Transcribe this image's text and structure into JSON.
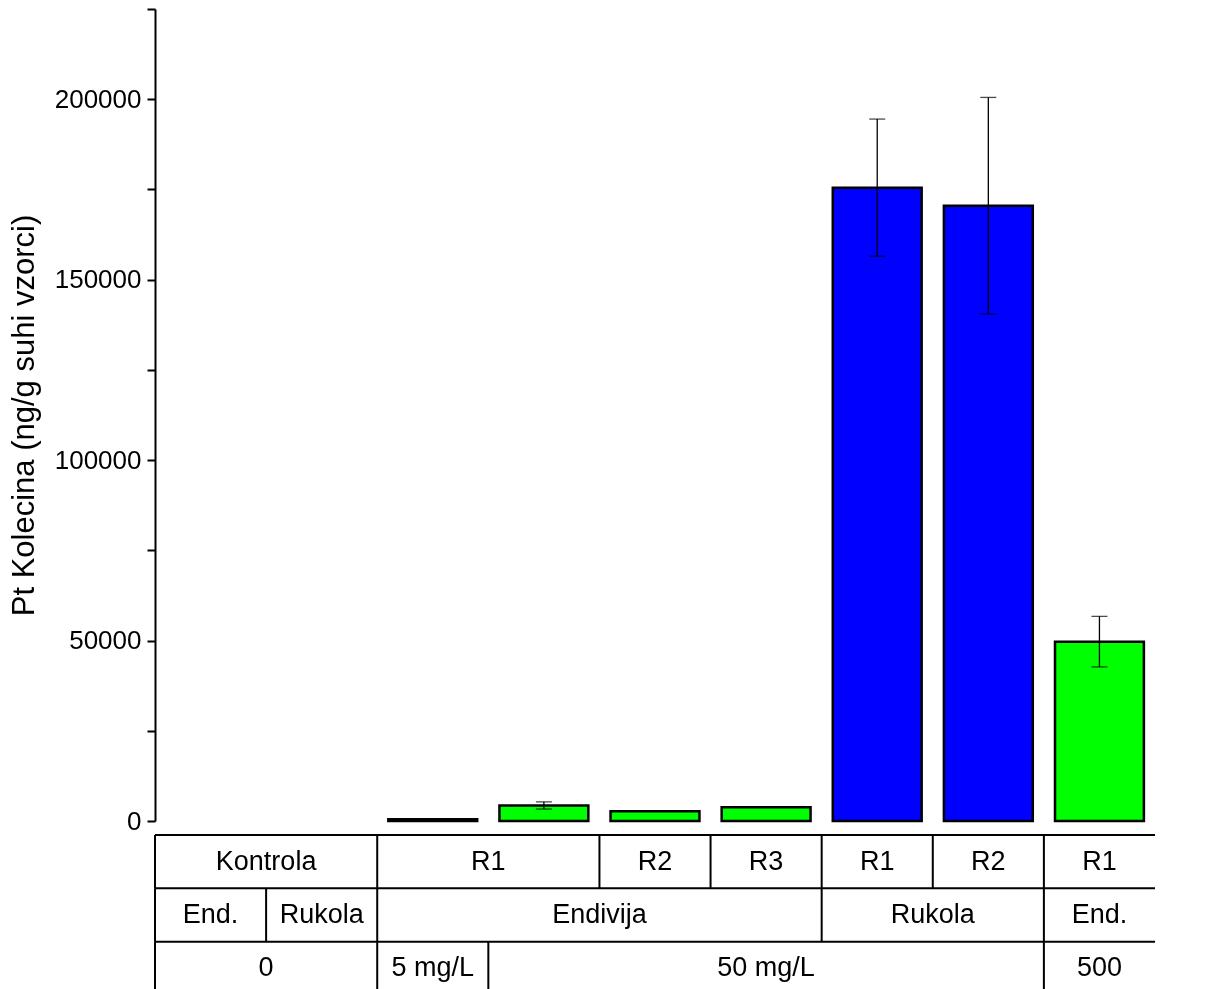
{
  "chart_data": {
    "type": "bar",
    "ylabel": "Pt Kolecina (ng/g suhi vzorci)",
    "categories": [
      null,
      null,
      null,
      null,
      "R2",
      "R3",
      "R1",
      "R2",
      "R1"
    ],
    "values": [
      null,
      null,
      500,
      4300,
      2700,
      3800,
      175500,
      170500,
      49700
    ],
    "errors": [
      null,
      null,
      null,
      1000,
      null,
      null,
      19000,
      30000,
      7000
    ],
    "colors": [
      "#00ff00",
      "#00ff00",
      "#00ff00",
      "#00ff00",
      "#00ff00",
      "#00ff00",
      "#0000ff",
      "#0000ff",
      "#00ff00"
    ],
    "ylim": [
      0,
      225000
    ],
    "yticks": [
      0,
      {
        "value": 25000,
        "label": null
      },
      50000,
      {
        "value": 75000,
        "label": null
      },
      100000,
      {
        "value": 125000,
        "label": null
      },
      150000,
      {
        "value": 175000,
        "label": null
      },
      200000,
      {
        "value": 225000,
        "label": null
      }
    ],
    "grid": false,
    "annotations": [
      "Kontrola",
      "R1",
      "End.",
      "Rukola",
      "Endivija",
      "Rukola",
      "End.",
      "0",
      "5 mg/L",
      "50 mg/L",
      "500"
    ]
  }
}
